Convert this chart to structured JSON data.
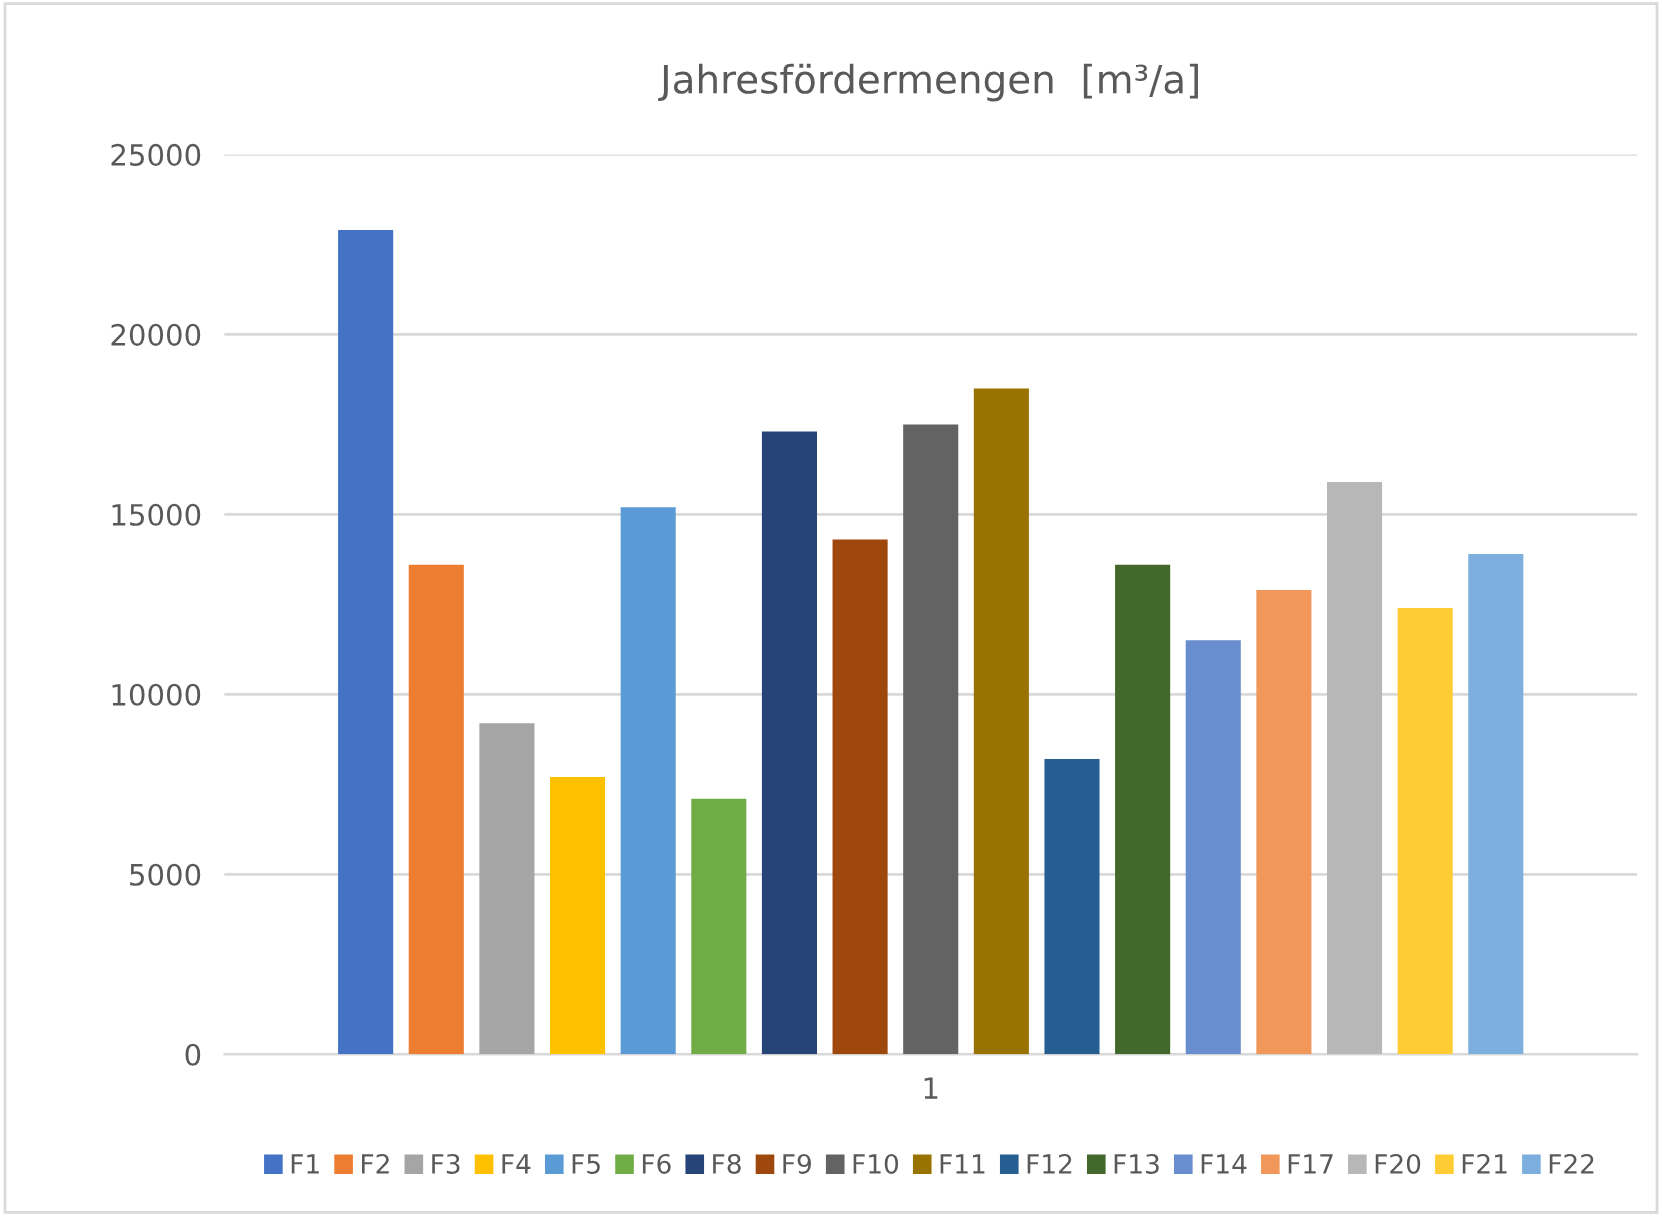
{
  "chart_data": {
    "type": "bar",
    "title": "Jahresfördermengen  [m³/a]",
    "categories": [
      "1"
    ],
    "series": [
      {
        "name": "F1",
        "color": "#4472c4",
        "values": [
          22900
        ]
      },
      {
        "name": "F2",
        "color": "#ed7d31",
        "values": [
          13600
        ]
      },
      {
        "name": "F3",
        "color": "#a5a5a5",
        "values": [
          9200
        ]
      },
      {
        "name": "F4",
        "color": "#ffc000",
        "values": [
          7700
        ]
      },
      {
        "name": "F5",
        "color": "#5b9bd5",
        "values": [
          15200
        ]
      },
      {
        "name": "F6",
        "color": "#70ad47",
        "values": [
          7100
        ]
      },
      {
        "name": "F8",
        "color": "#264478",
        "values": [
          17300
        ]
      },
      {
        "name": "F9",
        "color": "#9e480e",
        "values": [
          14300
        ]
      },
      {
        "name": "F10",
        "color": "#636363",
        "values": [
          17500
        ]
      },
      {
        "name": "F11",
        "color": "#997300",
        "values": [
          18500
        ]
      },
      {
        "name": "F12",
        "color": "#255e91",
        "values": [
          8200
        ]
      },
      {
        "name": "F13",
        "color": "#43682b",
        "values": [
          13600
        ]
      },
      {
        "name": "F14",
        "color": "#698ed0",
        "values": [
          11500
        ]
      },
      {
        "name": "F17",
        "color": "#f1975a",
        "values": [
          12900
        ]
      },
      {
        "name": "F20",
        "color": "#b7b7b7",
        "values": [
          15900
        ]
      },
      {
        "name": "F21",
        "color": "#ffcd33",
        "values": [
          12400
        ]
      },
      {
        "name": "F22",
        "color": "#7cafdd",
        "values": [
          13900
        ]
      }
    ],
    "ylim": [
      0,
      25000
    ],
    "yticks": [
      0,
      5000,
      10000,
      15000,
      20000,
      25000
    ],
    "grid": "y",
    "legend": "bottom"
  }
}
